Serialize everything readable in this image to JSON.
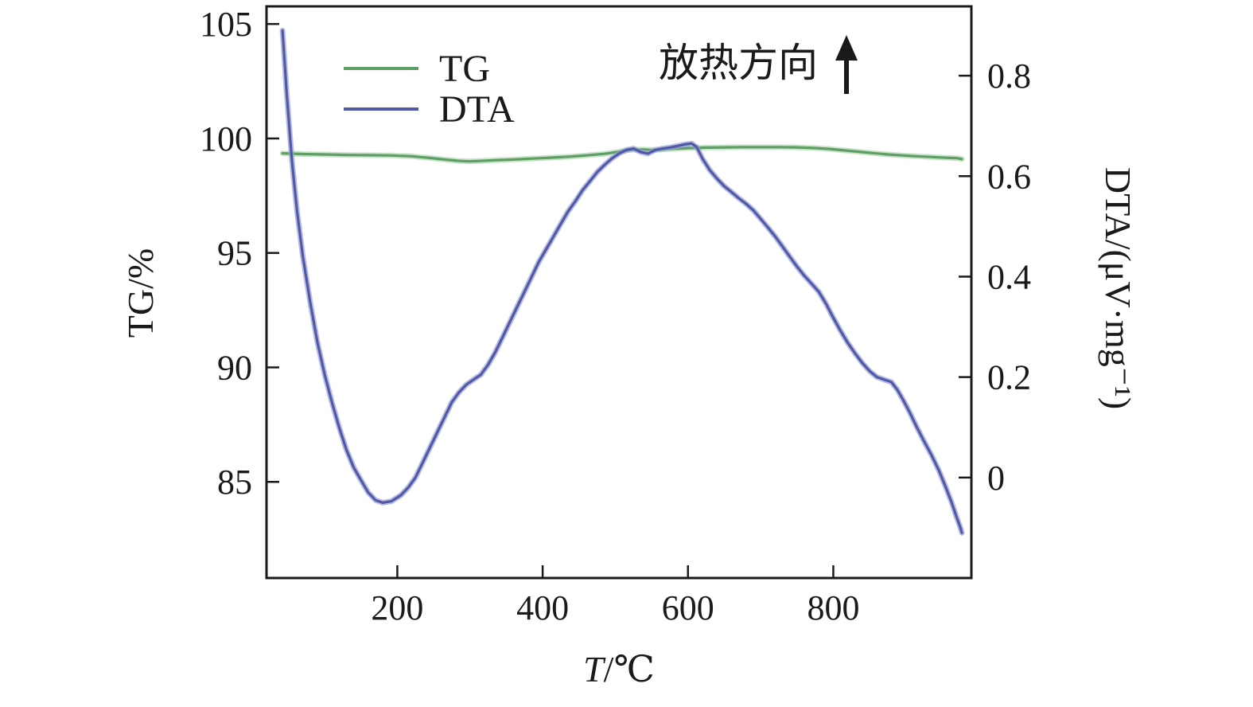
{
  "chart_data": {
    "type": "line",
    "title": "",
    "xlabel": "T/℃",
    "xlabel_parts": [
      "T",
      "/℃"
    ],
    "ylabel_left": "TG/%",
    "ylabel_right": "DTA/(μV·mg⁻¹)",
    "xlim": [
      20,
      990
    ],
    "ylim_left": [
      80.8,
      105.77
    ],
    "ylim_right": [
      -0.2,
      0.938
    ],
    "xticks": [
      200,
      400,
      600,
      800
    ],
    "xtick_labels": [
      "200",
      "400",
      "600",
      "800"
    ],
    "yticks_left": [
      85,
      90,
      95,
      100,
      105
    ],
    "ytick_labels_left": [
      "85",
      "90",
      "95",
      "100",
      "105"
    ],
    "yticks_right": [
      0,
      0.2,
      0.4,
      0.6,
      0.8
    ],
    "ytick_labels_right": [
      "0",
      "0.2",
      "0.4",
      "0.6",
      "0.8"
    ],
    "grid": false,
    "legend_position": "upper-left-inside",
    "frame_color": "#1a1a1a",
    "annotation": {
      "text": "放热方向",
      "arrow": "up"
    },
    "series": [
      {
        "name": "TG",
        "axis": "left",
        "unit": "%",
        "color": "#5f9f66",
        "halo": "#b2d8b4",
        "points": [
          [
            42,
            99.35
          ],
          [
            70,
            99.32
          ],
          [
            100,
            99.3
          ],
          [
            130,
            99.28
          ],
          [
            160,
            99.27
          ],
          [
            190,
            99.26
          ],
          [
            220,
            99.22
          ],
          [
            245,
            99.15
          ],
          [
            265,
            99.08
          ],
          [
            285,
            99.02
          ],
          [
            300,
            99.0
          ],
          [
            315,
            99.02
          ],
          [
            335,
            99.05
          ],
          [
            360,
            99.08
          ],
          [
            385,
            99.12
          ],
          [
            410,
            99.16
          ],
          [
            435,
            99.2
          ],
          [
            460,
            99.26
          ],
          [
            485,
            99.33
          ],
          [
            505,
            99.42
          ],
          [
            520,
            99.5
          ],
          [
            535,
            99.52
          ],
          [
            550,
            99.5
          ],
          [
            565,
            99.52
          ],
          [
            580,
            99.55
          ],
          [
            600,
            99.58
          ],
          [
            625,
            99.6
          ],
          [
            650,
            99.61
          ],
          [
            675,
            99.62
          ],
          [
            700,
            99.62
          ],
          [
            725,
            99.62
          ],
          [
            750,
            99.61
          ],
          [
            775,
            99.58
          ],
          [
            795,
            99.54
          ],
          [
            815,
            99.48
          ],
          [
            835,
            99.42
          ],
          [
            855,
            99.36
          ],
          [
            875,
            99.3
          ],
          [
            895,
            99.26
          ],
          [
            915,
            99.22
          ],
          [
            935,
            99.19
          ],
          [
            955,
            99.16
          ],
          [
            970,
            99.14
          ],
          [
            977,
            99.1
          ]
        ]
      },
      {
        "name": "DTA",
        "axis": "right",
        "unit": "μV·mg⁻¹",
        "color": "#4f59a7",
        "halo": "#9ba3d3",
        "points": [
          [
            42,
            0.89
          ],
          [
            48,
            0.76
          ],
          [
            55,
            0.63
          ],
          [
            62,
            0.53
          ],
          [
            70,
            0.44
          ],
          [
            80,
            0.35
          ],
          [
            90,
            0.27
          ],
          [
            100,
            0.205
          ],
          [
            110,
            0.15
          ],
          [
            120,
            0.1
          ],
          [
            130,
            0.055
          ],
          [
            140,
            0.02
          ],
          [
            150,
            -0.005
          ],
          [
            160,
            -0.03
          ],
          [
            170,
            -0.045
          ],
          [
            180,
            -0.05
          ],
          [
            192,
            -0.047
          ],
          [
            205,
            -0.035
          ],
          [
            215,
            -0.02
          ],
          [
            225,
            0.0
          ],
          [
            235,
            0.03
          ],
          [
            245,
            0.06
          ],
          [
            255,
            0.09
          ],
          [
            265,
            0.12
          ],
          [
            275,
            0.15
          ],
          [
            285,
            0.17
          ],
          [
            295,
            0.185
          ],
          [
            305,
            0.195
          ],
          [
            315,
            0.205
          ],
          [
            325,
            0.225
          ],
          [
            335,
            0.25
          ],
          [
            345,
            0.28
          ],
          [
            355,
            0.31
          ],
          [
            365,
            0.34
          ],
          [
            375,
            0.37
          ],
          [
            385,
            0.4
          ],
          [
            395,
            0.43
          ],
          [
            405,
            0.455
          ],
          [
            415,
            0.48
          ],
          [
            425,
            0.505
          ],
          [
            435,
            0.53
          ],
          [
            445,
            0.55
          ],
          [
            455,
            0.572
          ],
          [
            465,
            0.59
          ],
          [
            475,
            0.608
          ],
          [
            485,
            0.622
          ],
          [
            495,
            0.635
          ],
          [
            505,
            0.645
          ],
          [
            515,
            0.652
          ],
          [
            525,
            0.655
          ],
          [
            535,
            0.648
          ],
          [
            545,
            0.645
          ],
          [
            555,
            0.652
          ],
          [
            565,
            0.655
          ],
          [
            575,
            0.657
          ],
          [
            585,
            0.66
          ],
          [
            595,
            0.663
          ],
          [
            605,
            0.665
          ],
          [
            612,
            0.658
          ],
          [
            620,
            0.635
          ],
          [
            630,
            0.612
          ],
          [
            640,
            0.595
          ],
          [
            650,
            0.58
          ],
          [
            660,
            0.568
          ],
          [
            670,
            0.556
          ],
          [
            680,
            0.545
          ],
          [
            690,
            0.532
          ],
          [
            700,
            0.515
          ],
          [
            710,
            0.498
          ],
          [
            720,
            0.48
          ],
          [
            730,
            0.46
          ],
          [
            740,
            0.44
          ],
          [
            750,
            0.42
          ],
          [
            760,
            0.402
          ],
          [
            770,
            0.386
          ],
          [
            780,
            0.37
          ],
          [
            790,
            0.346
          ],
          [
            800,
            0.318
          ],
          [
            810,
            0.292
          ],
          [
            820,
            0.268
          ],
          [
            830,
            0.247
          ],
          [
            840,
            0.228
          ],
          [
            850,
            0.212
          ],
          [
            860,
            0.2
          ],
          [
            870,
            0.195
          ],
          [
            880,
            0.19
          ],
          [
            888,
            0.175
          ],
          [
            896,
            0.155
          ],
          [
            905,
            0.13
          ],
          [
            915,
            0.1
          ],
          [
            925,
            0.072
          ],
          [
            935,
            0.045
          ],
          [
            945,
            0.015
          ],
          [
            955,
            -0.02
          ],
          [
            963,
            -0.05
          ],
          [
            970,
            -0.08
          ],
          [
            975,
            -0.1
          ],
          [
            977,
            -0.11
          ]
        ]
      }
    ]
  }
}
